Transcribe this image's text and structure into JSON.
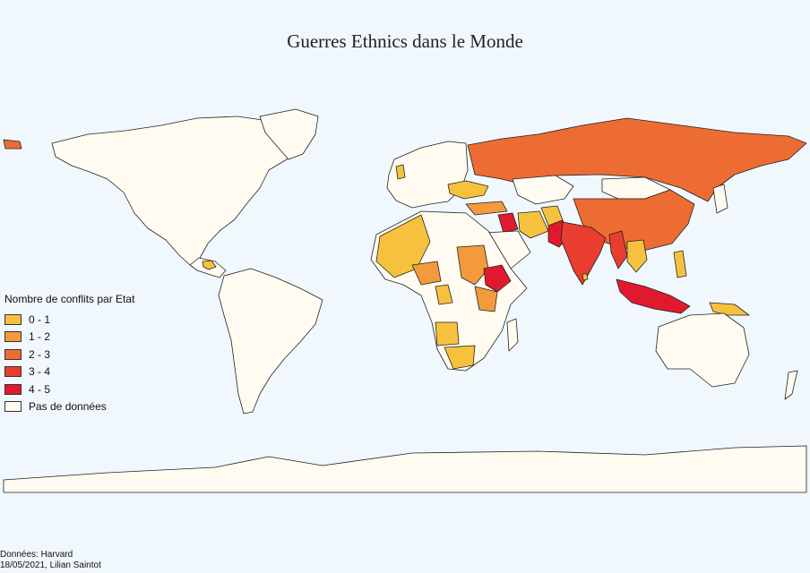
{
  "title": "Guerres Ethnics dans le Monde",
  "legend": {
    "title": "Nombre de conflits par Etat",
    "items": [
      {
        "label": "0 - 1",
        "color": "#f6c23e"
      },
      {
        "label": "1 - 2",
        "color": "#f39a3c"
      },
      {
        "label": "2 - 3",
        "color": "#ed6c33"
      },
      {
        "label": "3 - 4",
        "color": "#e83d2f"
      },
      {
        "label": "4 - 5",
        "color": "#e01a2e"
      },
      {
        "label": "Pas de données",
        "color": "#fffbf0"
      }
    ]
  },
  "colors": {
    "ocean": "#f0f7fd",
    "land_no_data": "#fffbf0",
    "border": "#222222"
  },
  "credits": {
    "source": "Données: Harvard",
    "date_author": "18/05/2021, Lilian Saintot"
  }
}
